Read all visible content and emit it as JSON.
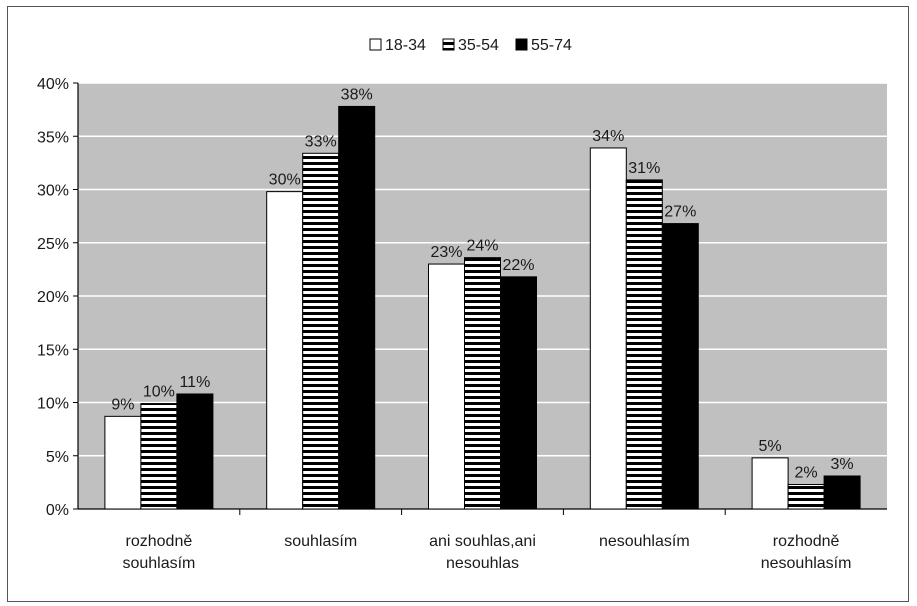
{
  "chart_data": {
    "type": "bar",
    "categories": [
      [
        "rozhodně",
        "souhlasím"
      ],
      [
        "souhlasím"
      ],
      [
        "ani souhlas,ani",
        "nesouhlas"
      ],
      [
        "nesouhlasím"
      ],
      [
        "rozhodně",
        "nesouhlasím"
      ]
    ],
    "series": [
      {
        "name": "18-34",
        "values": [
          8.7,
          29.8,
          23.0,
          33.9,
          4.8
        ],
        "labels": [
          "9%",
          "30%",
          "23%",
          "34%",
          "5%"
        ],
        "fill": "white"
      },
      {
        "name": "35-54",
        "values": [
          9.9,
          33.4,
          23.6,
          30.9,
          2.3
        ],
        "labels": [
          "10%",
          "33%",
          "24%",
          "31%",
          "2%"
        ],
        "fill": "stripes"
      },
      {
        "name": "55-74",
        "values": [
          10.8,
          37.8,
          21.8,
          26.8,
          3.1
        ],
        "labels": [
          "11%",
          "38%",
          "22%",
          "27%",
          "3%"
        ],
        "fill": "black"
      }
    ],
    "ylim": [
      0,
      40
    ],
    "yticks": [
      "0%",
      "5%",
      "10%",
      "15%",
      "20%",
      "25%",
      "30%",
      "35%",
      "40%"
    ],
    "grid": true,
    "legend_position": "top-center",
    "colors": {
      "plot_bg": "#c0c0c0",
      "grid": "#ffffff",
      "bar_outline": "#000000"
    }
  }
}
